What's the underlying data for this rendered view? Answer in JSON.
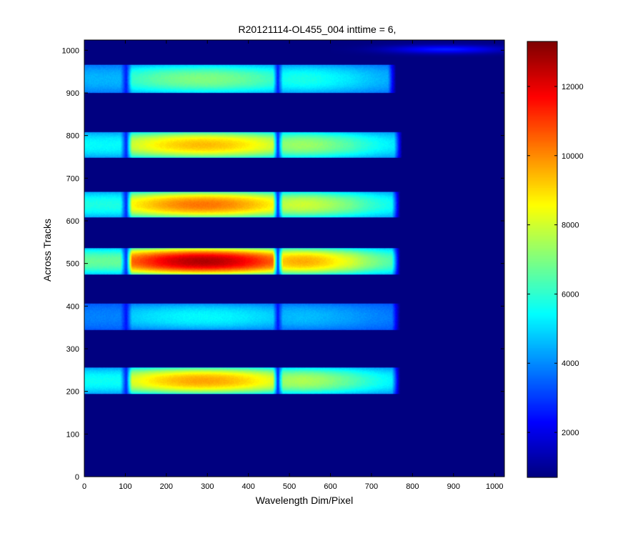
{
  "chart_data": {
    "type": "heatmap",
    "title": "R20121114-OL455_004 inttime = 6,",
    "xlabel": "Wavelength Dim/Pixel",
    "ylabel": "Across Tracks",
    "xlim": [
      0,
      1024
    ],
    "ylim": [
      0,
      1024
    ],
    "x_ticks": [
      "0",
      "100",
      "200",
      "300",
      "400",
      "500",
      "600",
      "700",
      "800",
      "900",
      "1000"
    ],
    "y_ticks": [
      "0",
      "100",
      "200",
      "300",
      "400",
      "500",
      "600",
      "700",
      "800",
      "900",
      "1000"
    ],
    "colorbar": {
      "colormap": "jet",
      "range": [
        700,
        13300
      ],
      "ticks": [
        "2000",
        "4000",
        "6000",
        "8000",
        "10000",
        "12000"
      ]
    },
    "background_value": 700,
    "band_edges_x": [
      0,
      100,
      105,
      460,
      478,
      760
    ],
    "dips_x": [
      {
        "center": 102,
        "halfwidth": 14
      },
      {
        "center": 472,
        "halfwidth": 12
      }
    ],
    "bands": [
      {
        "y_range": [
          195,
          255
        ],
        "x_end": 770,
        "peak": 9700,
        "edge": 3200
      },
      {
        "y_range": [
          345,
          405
        ],
        "x_end": 770,
        "peak": 5400,
        "edge": 3000
      },
      {
        "y_range": [
          475,
          535
        ],
        "x_end": 770,
        "peak": 12700,
        "edge": 3300
      },
      {
        "y_range": [
          608,
          668
        ],
        "x_end": 770,
        "peak": 10300,
        "edge": 3200
      },
      {
        "y_range": [
          748,
          808
        ],
        "x_end": 775,
        "peak": 9400,
        "edge": 3200
      },
      {
        "y_range": [
          900,
          965
        ],
        "x_end": 760,
        "peak": 7000,
        "edge": 3100
      }
    ],
    "top_strip": {
      "y_range": [
        980,
        1024
      ],
      "x_range": [
        600,
        1024
      ],
      "peak": 2600
    }
  }
}
